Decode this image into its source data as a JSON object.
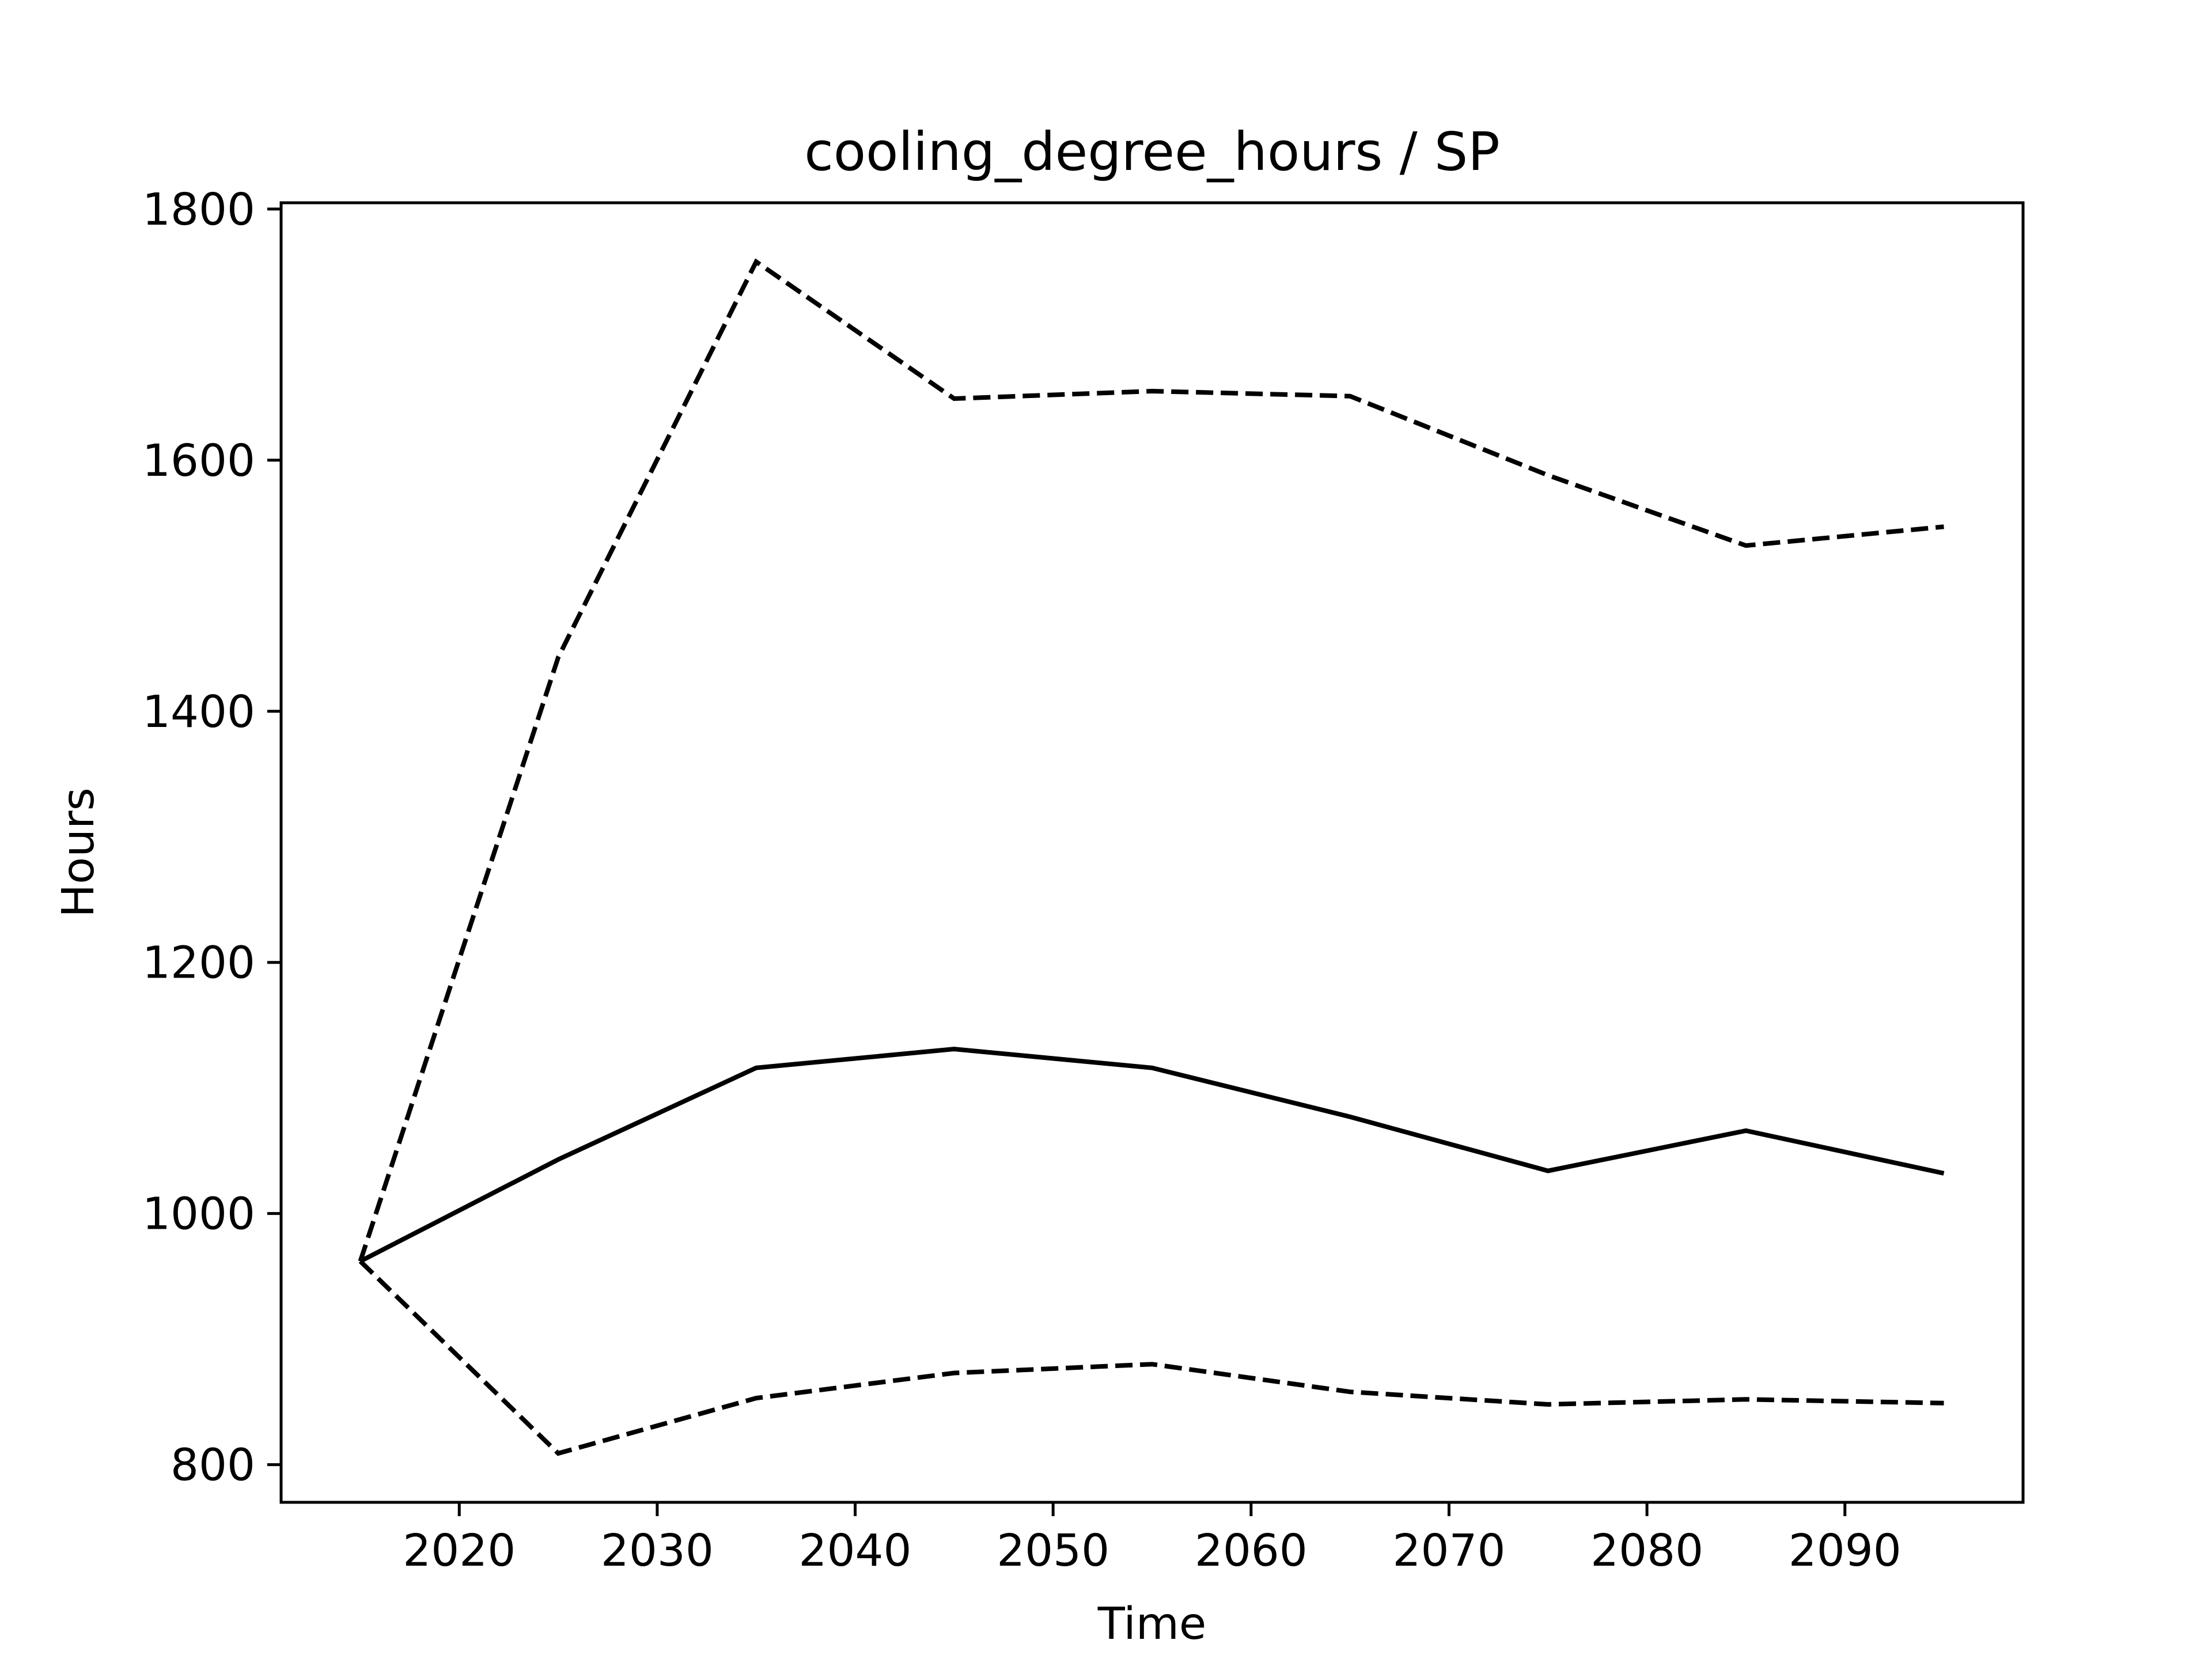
{
  "chart_data": {
    "type": "line",
    "title": "cooling_degree_hours / SP",
    "xlabel": "Time",
    "ylabel": "Hours",
    "x": [
      2015,
      2025,
      2035,
      2045,
      2055,
      2065,
      2075,
      2085,
      2095
    ],
    "xlim": [
      2011,
      2099
    ],
    "ylim": [
      770,
      1805
    ],
    "xticks": [
      2020,
      2030,
      2040,
      2050,
      2060,
      2070,
      2080,
      2090
    ],
    "yticks": [
      800,
      1000,
      1200,
      1400,
      1600,
      1800
    ],
    "grid": false,
    "series": [
      {
        "style": "dashed",
        "color": "#000000",
        "values": [
          962,
          1443,
          1758,
          1649,
          1655,
          1651,
          1588,
          1532,
          1547
        ]
      },
      {
        "style": "solid",
        "color": "#000000",
        "values": [
          962,
          1043,
          1116,
          1131,
          1116,
          1077,
          1034,
          1066,
          1032
        ]
      },
      {
        "style": "dashed",
        "color": "#000000",
        "values": [
          962,
          809,
          853,
          873,
          880,
          858,
          848,
          852,
          849
        ]
      }
    ]
  }
}
